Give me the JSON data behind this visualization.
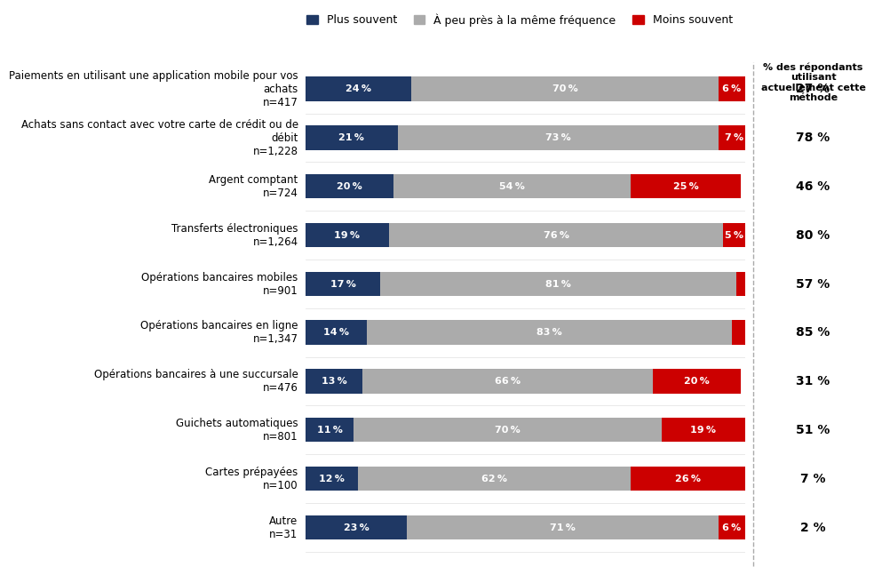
{
  "categories": [
    "Paiements en utilisant une application mobile pour vos\nachats\nn=417",
    "Achats sans contact avec votre carte de crédit ou de\ndébit\nn=1,228",
    "Argent comptant\nn=724",
    "Transferts électroniques\nn=1,264",
    "Opérations bancaires mobiles\nn=901",
    "Opérations bancaires en ligne\nn=1,347",
    "Opérations bancaires à une succursale\nn=476",
    "Guichets automatiques\nn=801",
    "Cartes prépayées\nn=100",
    "Autre\nn=31"
  ],
  "plus_souvent": [
    24,
    21,
    20,
    19,
    17,
    14,
    13,
    11,
    12,
    23
  ],
  "meme_frequence": [
    70,
    73,
    54,
    76,
    81,
    83,
    66,
    70,
    62,
    71
  ],
  "moins_souvent": [
    6,
    7,
    25,
    5,
    2,
    3,
    20,
    19,
    26,
    6
  ],
  "pct_utilisateurs": [
    "27 %",
    "78 %",
    "46 %",
    "80 %",
    "57 %",
    "85 %",
    "31 %",
    "51 %",
    "7 %",
    "2 %"
  ],
  "color_plus": "#1F3864",
  "color_meme": "#ABABAB",
  "color_moins": "#CC0000",
  "legend_labels": [
    "Plus souvent",
    "À peu près à la même fréquence",
    "Moins souvent"
  ],
  "right_col_header": "% des répondants\nutilisant\nactuellement cette\nméthode",
  "background_color": "#FFFFFF"
}
